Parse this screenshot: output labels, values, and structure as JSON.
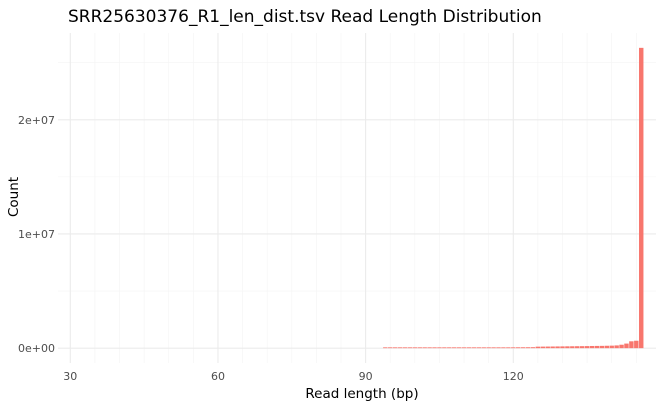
{
  "chart_data": {
    "type": "bar",
    "title": "SRR25630376_R1_len_dist.tsv Read Length Distribution",
    "xlabel": "Read length (bp)",
    "ylabel": "Count",
    "xlim": [
      27.5,
      149
    ],
    "ylim": [
      -1300000,
      27600000
    ],
    "x_ticks": [
      30,
      60,
      90,
      120
    ],
    "x_tick_labels": [
      "30",
      "60",
      "90",
      "120"
    ],
    "y_ticks": [
      0,
      10000000,
      20000000
    ],
    "y_tick_labels": [
      "0e+00",
      "1e+07",
      "2e+07"
    ],
    "bar_color": "#F8766D",
    "grid": true,
    "legend": "none",
    "x": [
      94,
      95,
      96,
      97,
      98,
      99,
      100,
      101,
      102,
      103,
      104,
      105,
      106,
      107,
      108,
      109,
      110,
      111,
      112,
      113,
      114,
      115,
      116,
      117,
      118,
      119,
      120,
      121,
      122,
      123,
      124,
      125,
      126,
      127,
      128,
      129,
      130,
      131,
      132,
      133,
      134,
      135,
      136,
      137,
      138,
      139,
      140,
      141,
      142,
      143,
      144,
      145,
      146
    ],
    "values": [
      30000,
      31000,
      32000,
      33000,
      34000,
      35000,
      36000,
      37000,
      38000,
      40000,
      41000,
      42000,
      44000,
      45000,
      47000,
      48000,
      50000,
      52000,
      54000,
      56000,
      58000,
      60000,
      62000,
      65000,
      67000,
      70000,
      72000,
      75000,
      78000,
      80000,
      85000,
      130000,
      135000,
      140000,
      145000,
      150000,
      155000,
      160000,
      165000,
      170000,
      175000,
      180000,
      190000,
      195000,
      200000,
      210000,
      220000,
      240000,
      300000,
      400000,
      600000,
      650000,
      26300000
    ]
  }
}
